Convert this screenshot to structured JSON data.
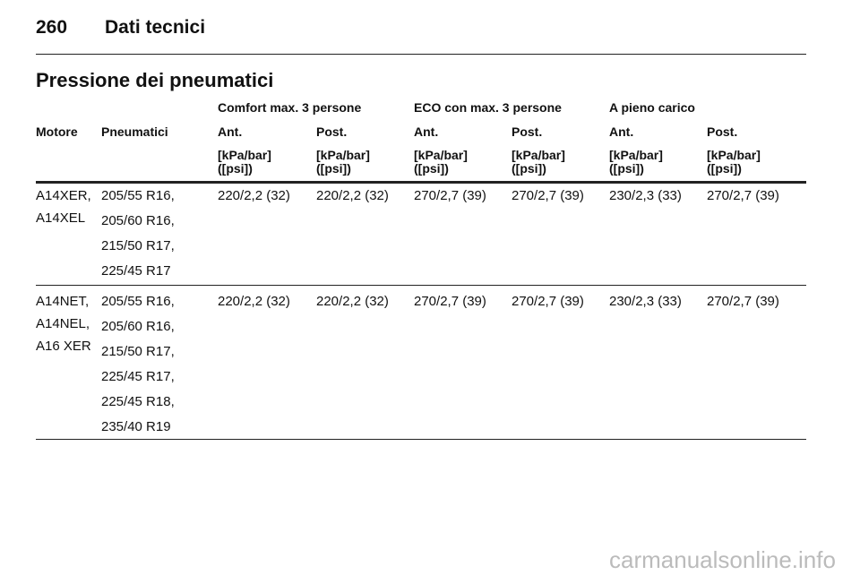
{
  "header": {
    "page_number": "260",
    "section": "Dati tecnici"
  },
  "title": "Pressione dei pneumatici",
  "table": {
    "groups": [
      "Comfort max. 3 persone",
      "ECO con max. 3 persone",
      "A pieno carico"
    ],
    "columns": [
      "Motore",
      "Pneumatici",
      "Ant.",
      "Post.",
      "Ant.",
      "Post.",
      "Ant.",
      "Post."
    ],
    "units": [
      [
        "[kPa/bar]",
        "([psi])"
      ],
      [
        "[kPa/bar]",
        "([psi])"
      ],
      [
        "[kPa/bar]",
        "([psi])"
      ],
      [
        "[kPa/bar]",
        "([psi])"
      ],
      [
        "[kPa/bar]",
        "([psi])"
      ],
      [
        "[kPa/bar]",
        "([psi])"
      ]
    ],
    "rows": [
      {
        "engines": [
          "A14XER,",
          "A14XEL"
        ],
        "tyres": [
          "205/55 R16,",
          "205/60 R16,",
          "215/50 R17,",
          "225/45 R17"
        ],
        "values": [
          "220/2,2 (32)",
          "220/2,2 (32)",
          "270/2,7 (39)",
          "270/2,7 (39)",
          "230/2,3 (33)",
          "270/2,7 (39)"
        ]
      },
      {
        "engines": [
          "A14NET,",
          "A14NEL,",
          "A16 XER"
        ],
        "tyres": [
          "205/55 R16,",
          "205/60 R16,",
          "215/50 R17,",
          "225/45 R17,",
          "225/45 R18,",
          "235/40 R19"
        ],
        "values": [
          "220/2,2 (32)",
          "220/2,2 (32)",
          "270/2,7 (39)",
          "270/2,7 (39)",
          "230/2,3 (33)",
          "270/2,7 (39)"
        ]
      }
    ]
  },
  "watermark": "carmanualsonline.info"
}
